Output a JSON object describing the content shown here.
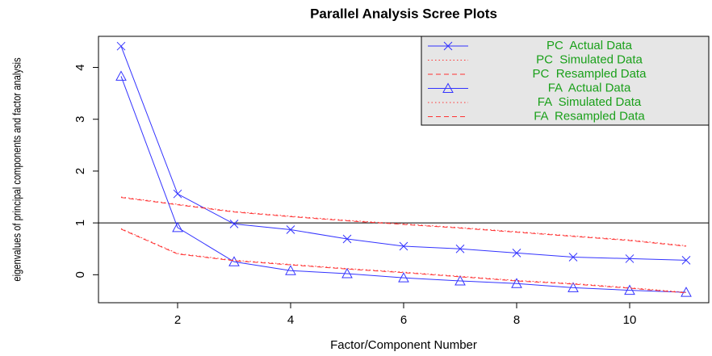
{
  "chart_data": {
    "type": "line",
    "title": "Parallel Analysis Scree Plots",
    "x_label": "Factor/Component Number",
    "y_label": "eigenvalues of principal components and factor analysis",
    "x": [
      1,
      2,
      3,
      4,
      5,
      6,
      7,
      8,
      9,
      10,
      11
    ],
    "xlim": [
      0.6,
      11.4
    ],
    "xticks": [
      2,
      4,
      6,
      8,
      10
    ],
    "ylim": [
      -0.54,
      4.6
    ],
    "yticks": [
      0,
      1,
      2,
      3,
      4
    ],
    "hline": 1,
    "legend_position": "top-right",
    "legend_text_color": "#1aa01a",
    "series": [
      {
        "name": "PC  Actual Data",
        "color": "#3333ff",
        "line_style": "solid",
        "marker": "cross",
        "values": [
          4.41,
          1.56,
          0.98,
          0.87,
          0.69,
          0.55,
          0.5,
          0.42,
          0.34,
          0.31,
          0.28
        ]
      },
      {
        "name": "PC  Simulated Data",
        "color": "#ff3333",
        "line_style": "dotted",
        "marker": "none",
        "values": [
          1.5,
          1.36,
          1.22,
          1.13,
          1.05,
          0.98,
          0.91,
          0.83,
          0.75,
          0.67,
          0.56
        ]
      },
      {
        "name": "PC  Resampled Data",
        "color": "#ff3333",
        "line_style": "dashed",
        "marker": "none",
        "values": [
          1.49,
          1.35,
          1.21,
          1.12,
          1.04,
          0.97,
          0.9,
          0.82,
          0.74,
          0.66,
          0.55
        ]
      },
      {
        "name": "FA  Actual Data",
        "color": "#3333ff",
        "line_style": "solid",
        "marker": "triangle",
        "values": [
          3.83,
          0.91,
          0.25,
          0.08,
          0.02,
          -0.06,
          -0.12,
          -0.17,
          -0.25,
          -0.3,
          -0.34
        ]
      },
      {
        "name": "FA  Simulated Data",
        "color": "#ff3333",
        "line_style": "dotted",
        "marker": "none",
        "values": [
          0.89,
          0.41,
          0.28,
          0.2,
          0.12,
          0.05,
          -0.03,
          -0.11,
          -0.17,
          -0.25,
          -0.34
        ]
      },
      {
        "name": "FA  Resampled Data",
        "color": "#ff3333",
        "line_style": "dashed",
        "marker": "none",
        "values": [
          0.88,
          0.4,
          0.27,
          0.19,
          0.11,
          0.04,
          -0.04,
          -0.12,
          -0.18,
          -0.26,
          -0.35
        ]
      }
    ]
  }
}
